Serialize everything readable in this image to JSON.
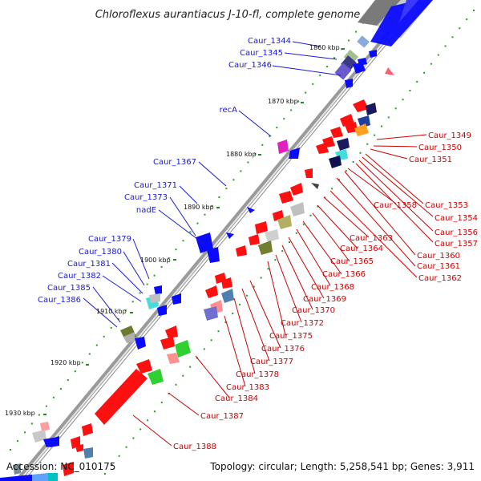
{
  "title": "Chloroflexus aurantiacus J-10-fl, complete genome",
  "footer": {
    "accession": "Accession: NC_010175",
    "summary": "Topology: circular; Length: 5,258,541 bp; Genes: 3,911"
  },
  "scale_labels": [
    "1860 kbp",
    "1870 kbp",
    "1880 kbp",
    "1890 kbp",
    "1900 kbp",
    "1910 kbp",
    "1920 kbp",
    "1930 kbp"
  ],
  "colors": {
    "forward_label": "#1a1acc",
    "reverse_label": "#cc0000",
    "forward_gene": "#0a0aff",
    "reverse_gene": "#ff1010",
    "backbone": "#8a8a8a",
    "tick": "#1e8a1e"
  },
  "labels_forward": [
    "Caur_1344",
    "Caur_1345",
    "Caur_1346",
    "recA",
    "Caur_1367",
    "Caur_1371",
    "Caur_1373",
    "nadE",
    "Caur_1379",
    "Caur_1380",
    "Caur_1381",
    "Caur_1382",
    "Caur_1385",
    "Caur_1386"
  ],
  "labels_reverse": [
    "Caur_1349",
    "Caur_1350",
    "Caur_1351",
    "Caur_1353",
    "Caur_1354",
    "Caur_1356",
    "Caur_1357",
    "Caur_1358",
    "Caur_1360",
    "Caur_1361",
    "Caur_1362",
    "Caur_1363",
    "Caur_1364",
    "Caur_1365",
    "Caur_1366",
    "Caur_1368",
    "Caur_1369",
    "Caur_1370",
    "Caur_1372",
    "Caur_1375",
    "Caur_1376",
    "Caur_1377",
    "Caur_1378",
    "Caur_1383",
    "Caur_1384",
    "Caur_1387",
    "Caur_1388"
  ]
}
